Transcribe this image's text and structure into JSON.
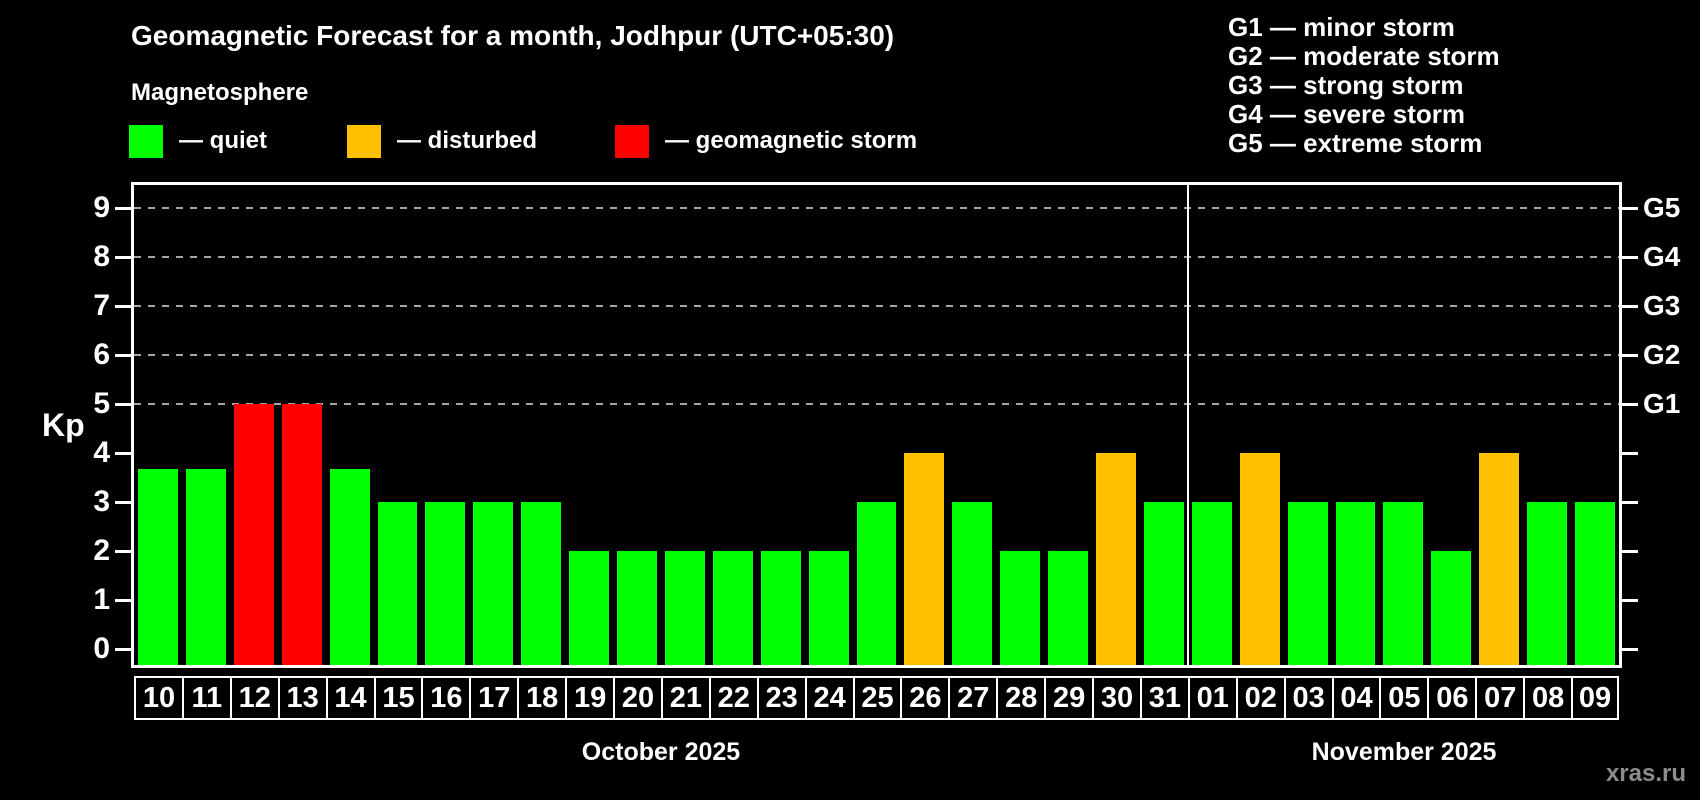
{
  "header": {
    "title": "Geomagnetic Forecast for a month, Jodhpur (UTC+05:30)",
    "subtitle": "Magnetosphere"
  },
  "legend": {
    "items": [
      {
        "name": "quiet",
        "label": "— quiet",
        "color": "#00ff00"
      },
      {
        "name": "disturbed",
        "label": "— disturbed",
        "color": "#ffc000"
      },
      {
        "name": "storm",
        "label": "— geomagnetic storm",
        "color": "#ff0000"
      }
    ]
  },
  "g_scale_legend": {
    "items": [
      "G1 — minor storm",
      "G2 — moderate storm",
      "G3 — strong storm",
      "G4 — severe storm",
      "G5 — extreme storm"
    ]
  },
  "watermark": "xras.ru",
  "colors": {
    "background": "#000000",
    "axis": "#ffffff",
    "grid": "#a6a6a6",
    "quiet": "#00ff00",
    "disturbed": "#ffc000",
    "storm": "#ff0000",
    "watermark": "#8c8c8c"
  },
  "chart_data": {
    "type": "bar",
    "title": "Geomagnetic Forecast for a month, Jodhpur (UTC+05:30)",
    "xlabel": "",
    "ylabel": "Kp",
    "ylim": [
      0,
      9.4
    ],
    "y_ticks": [
      0,
      1,
      2,
      3,
      4,
      5,
      6,
      7,
      8,
      9
    ],
    "grid": "horizontal dashed lines at Kp 5,6,7,8,9",
    "legend_position": "top",
    "right_axis": [
      {
        "label": "G1",
        "kp": 5
      },
      {
        "label": "G2",
        "kp": 6
      },
      {
        "label": "G3",
        "kp": 7
      },
      {
        "label": "G4",
        "kp": 8
      },
      {
        "label": "G5",
        "kp": 9
      }
    ],
    "months": [
      {
        "label": "October 2025",
        "days": [
          {
            "day": "10",
            "kp": 3.67,
            "status": "quiet"
          },
          {
            "day": "11",
            "kp": 3.67,
            "status": "quiet"
          },
          {
            "day": "12",
            "kp": 5,
            "status": "storm"
          },
          {
            "day": "13",
            "kp": 5,
            "status": "storm"
          },
          {
            "day": "14",
            "kp": 3.67,
            "status": "quiet"
          },
          {
            "day": "15",
            "kp": 3,
            "status": "quiet"
          },
          {
            "day": "16",
            "kp": 3,
            "status": "quiet"
          },
          {
            "day": "17",
            "kp": 3,
            "status": "quiet"
          },
          {
            "day": "18",
            "kp": 3,
            "status": "quiet"
          },
          {
            "day": "19",
            "kp": 2,
            "status": "quiet"
          },
          {
            "day": "20",
            "kp": 2,
            "status": "quiet"
          },
          {
            "day": "21",
            "kp": 2,
            "status": "quiet"
          },
          {
            "day": "22",
            "kp": 2,
            "status": "quiet"
          },
          {
            "day": "23",
            "kp": 2,
            "status": "quiet"
          },
          {
            "day": "24",
            "kp": 2,
            "status": "quiet"
          },
          {
            "day": "25",
            "kp": 3,
            "status": "quiet"
          },
          {
            "day": "26",
            "kp": 4,
            "status": "disturbed"
          },
          {
            "day": "27",
            "kp": 3,
            "status": "quiet"
          },
          {
            "day": "28",
            "kp": 2,
            "status": "quiet"
          },
          {
            "day": "29",
            "kp": 2,
            "status": "quiet"
          },
          {
            "day": "30",
            "kp": 4,
            "status": "disturbed"
          },
          {
            "day": "31",
            "kp": 3,
            "status": "quiet"
          }
        ]
      },
      {
        "label": "November 2025",
        "days": [
          {
            "day": "01",
            "kp": 3,
            "status": "quiet"
          },
          {
            "day": "02",
            "kp": 4,
            "status": "disturbed"
          },
          {
            "day": "03",
            "kp": 3,
            "status": "quiet"
          },
          {
            "day": "04",
            "kp": 3,
            "status": "quiet"
          },
          {
            "day": "05",
            "kp": 3,
            "status": "quiet"
          },
          {
            "day": "06",
            "kp": 2,
            "status": "quiet"
          },
          {
            "day": "07",
            "kp": 4,
            "status": "disturbed"
          },
          {
            "day": "08",
            "kp": 3,
            "status": "quiet"
          },
          {
            "day": "09",
            "kp": 3,
            "status": "quiet"
          }
        ]
      }
    ]
  }
}
